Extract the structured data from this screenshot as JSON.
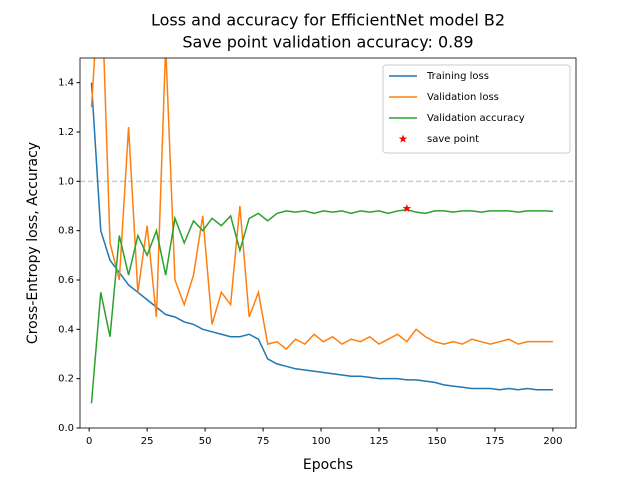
{
  "chart_data": {
    "type": "line",
    "title": "Loss and accuracy for EfficientNet model B2",
    "subtitle": "Save point validation accuracy: 0.89",
    "xlabel": "Epochs",
    "ylabel": "Cross-Entropy loss, Accuracy",
    "x": [
      1,
      5,
      9,
      13,
      17,
      21,
      25,
      29,
      33,
      37,
      41,
      45,
      49,
      53,
      57,
      61,
      65,
      69,
      73,
      77,
      81,
      85,
      89,
      93,
      97,
      101,
      105,
      109,
      113,
      117,
      121,
      125,
      129,
      133,
      137,
      141,
      145,
      149,
      153,
      157,
      161,
      165,
      169,
      173,
      177,
      181,
      185,
      189,
      193,
      197,
      200
    ],
    "series": [
      {
        "name": "Training loss",
        "color": "#1f77b4",
        "values": [
          1.4,
          0.8,
          0.68,
          0.63,
          0.58,
          0.55,
          0.52,
          0.49,
          0.46,
          0.45,
          0.43,
          0.42,
          0.4,
          0.39,
          0.38,
          0.37,
          0.37,
          0.38,
          0.36,
          0.28,
          0.26,
          0.25,
          0.24,
          0.235,
          0.23,
          0.225,
          0.22,
          0.215,
          0.21,
          0.21,
          0.205,
          0.2,
          0.2,
          0.2,
          0.195,
          0.195,
          0.19,
          0.185,
          0.175,
          0.17,
          0.165,
          0.16,
          0.16,
          0.16,
          0.155,
          0.16,
          0.155,
          0.16,
          0.155,
          0.155,
          0.155
        ]
      },
      {
        "name": "Validation loss",
        "color": "#ff7f0e",
        "values": [
          1.3,
          1.9,
          0.75,
          0.6,
          1.22,
          0.55,
          0.82,
          0.45,
          1.55,
          0.6,
          0.5,
          0.62,
          0.86,
          0.42,
          0.55,
          0.5,
          0.9,
          0.45,
          0.55,
          0.34,
          0.35,
          0.32,
          0.36,
          0.34,
          0.38,
          0.35,
          0.37,
          0.34,
          0.36,
          0.35,
          0.37,
          0.34,
          0.36,
          0.38,
          0.35,
          0.4,
          0.37,
          0.35,
          0.34,
          0.35,
          0.34,
          0.36,
          0.35,
          0.34,
          0.35,
          0.36,
          0.34,
          0.35,
          0.35,
          0.35,
          0.35
        ]
      },
      {
        "name": "Validation accuracy",
        "color": "#2ca02c",
        "values": [
          0.1,
          0.55,
          0.37,
          0.78,
          0.62,
          0.78,
          0.7,
          0.8,
          0.62,
          0.85,
          0.75,
          0.84,
          0.8,
          0.85,
          0.82,
          0.86,
          0.72,
          0.85,
          0.87,
          0.84,
          0.87,
          0.88,
          0.875,
          0.88,
          0.87,
          0.88,
          0.875,
          0.88,
          0.87,
          0.88,
          0.875,
          0.88,
          0.87,
          0.88,
          0.885,
          0.875,
          0.87,
          0.88,
          0.88,
          0.875,
          0.88,
          0.88,
          0.875,
          0.88,
          0.88,
          0.88,
          0.875,
          0.88,
          0.88,
          0.88,
          0.878
        ]
      },
      {
        "name": "save point",
        "color": "#ff0000",
        "marker": "star",
        "x": [
          137
        ],
        "values": [
          0.89
        ]
      }
    ],
    "reference_line": {
      "value": 1.0,
      "color": "#cccccc",
      "style": "dashed"
    },
    "xlim": [
      -3.95,
      209.95
    ],
    "ylim": [
      0,
      1.5
    ],
    "xticks": [
      0,
      25,
      50,
      75,
      100,
      125,
      150,
      175,
      200
    ],
    "yticks": [
      {
        "value": 0,
        "label": "0.0"
      },
      0.2,
      0.4,
      0.6,
      0.8,
      {
        "value": 1,
        "label": "1.0"
      },
      1.2,
      1.4
    ],
    "legend": "upper right"
  }
}
